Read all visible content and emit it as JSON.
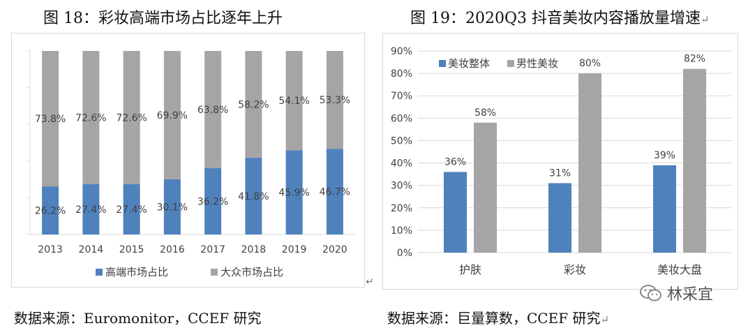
{
  "left": {
    "title": "图 18：彩妆高端市场占比逐年上升",
    "source": "数据来源：Euromonitor，CCEF 研究"
  },
  "right": {
    "title": "图 19：2020Q3 抖音美妆内容播放量增速",
    "source": "数据来源：巨量算数，CCEF 研究"
  },
  "return_mark": "↵",
  "watermark": {
    "text": "林采宜"
  },
  "colors": {
    "blue": "#4f81bd",
    "gray": "#a5a5a5",
    "grid": "#d9d9d9"
  },
  "chart_data": [
    {
      "type": "bar",
      "stacked": true,
      "categories": [
        "2013",
        "2014",
        "2015",
        "2016",
        "2017",
        "2018",
        "2019",
        "2020"
      ],
      "series": [
        {
          "name": "高端市场占比",
          "values": [
            26.2,
            27.4,
            27.4,
            30.1,
            36.2,
            41.8,
            45.9,
            46.7
          ]
        },
        {
          "name": "大众市场占比",
          "values": [
            73.8,
            72.6,
            72.6,
            69.9,
            63.8,
            58.2,
            54.1,
            53.3
          ]
        }
      ],
      "data_labels": [
        [
          "26.2%",
          "27.4%",
          "27.4%",
          "30.1%",
          "36.2%",
          "41.8%",
          "45.9%",
          "46.7%"
        ],
        [
          "73.8%",
          "72.6%",
          "72.6%",
          "69.9%",
          "63.8%",
          "58.2%",
          "54.1%",
          "53.3%"
        ]
      ],
      "ylim": [
        0,
        100
      ],
      "grid": false,
      "legend": "bottom"
    },
    {
      "type": "bar",
      "categories": [
        "护肤",
        "彩妆",
        "美妆大盘"
      ],
      "series": [
        {
          "name": "美妆整体",
          "values": [
            36,
            31,
            39
          ]
        },
        {
          "name": "男性美妆",
          "values": [
            58,
            80,
            82
          ]
        }
      ],
      "data_labels": [
        [
          "36%",
          "31%",
          "39%"
        ],
        [
          "58%",
          "80%",
          "82%"
        ]
      ],
      "yticks": [
        "0%",
        "10%",
        "20%",
        "30%",
        "40%",
        "50%",
        "60%",
        "70%",
        "80%",
        "90%"
      ],
      "ylim": [
        0,
        90
      ],
      "grid": true,
      "legend": "top-left"
    }
  ]
}
